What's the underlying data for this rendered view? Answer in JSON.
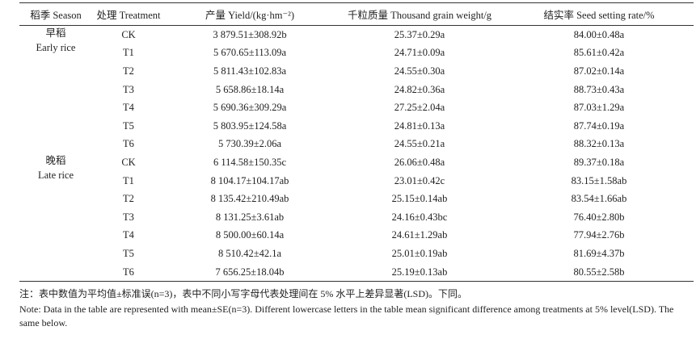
{
  "table": {
    "headers": [
      "稻季 Season",
      "处理 Treatment",
      "产量 Yield/(kg·hm⁻²)",
      "千粒质量 Thousand grain weight/g",
      "结实率 Seed setting rate/%"
    ],
    "groups": [
      {
        "season_cn": "早稻",
        "season_en": "Early rice",
        "rows": [
          [
            "CK",
            "3 879.51±308.92b",
            "25.37±0.29a",
            "84.00±0.48a"
          ],
          [
            "T1",
            "5 670.65±113.09a",
            "24.71±0.09a",
            "85.61±0.42a"
          ],
          [
            "T2",
            "5 811.43±102.83a",
            "24.55±0.30a",
            "87.02±0.14a"
          ],
          [
            "T3",
            "5 658.86±18.14a",
            "24.82±0.36a",
            "88.73±0.43a"
          ],
          [
            "T4",
            "5 690.36±309.29a",
            "27.25±2.04a",
            "87.03±1.29a"
          ],
          [
            "T5",
            "5 803.95±124.58a",
            "24.81±0.13a",
            "87.74±0.19a"
          ],
          [
            "T6",
            "5 730.39±2.06a",
            "24.55±0.21a",
            "88.32±0.13a"
          ]
        ]
      },
      {
        "season_cn": "晚稻",
        "season_en": "Late rice",
        "rows": [
          [
            "CK",
            "6 114.58±150.35c",
            "26.06±0.48a",
            "89.37±0.18a"
          ],
          [
            "T1",
            "8 104.17±104.17ab",
            "23.01±0.42c",
            "83.15±1.58ab"
          ],
          [
            "T2",
            "8 135.42±210.49ab",
            "25.15±0.14ab",
            "83.54±1.66ab"
          ],
          [
            "T3",
            "8 131.25±3.61ab",
            "24.16±0.43bc",
            "76.40±2.80b"
          ],
          [
            "T4",
            "8 500.00±60.14a",
            "24.61±1.29ab",
            "77.94±2.76b"
          ],
          [
            "T5",
            "8 510.42±42.1a",
            "25.01±0.19ab",
            "81.69±4.37b"
          ],
          [
            "T6",
            "7 656.25±18.04b",
            "25.19±0.13ab",
            "80.55±2.58b"
          ]
        ]
      }
    ]
  },
  "notes": {
    "cn": "注：表中数值为平均值±标准误(n=3)，表中不同小写字母代表处理间在 5% 水平上差异显著(LSD)。下同。",
    "en": "Note: Data in the table are represented with mean±SE(n=3). Different lowercase letters in the table mean significant difference among treatments at 5% level(LSD). The same below."
  }
}
